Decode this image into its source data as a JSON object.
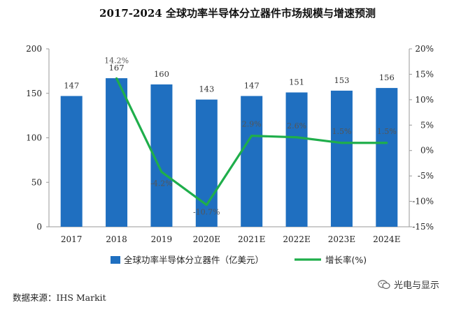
{
  "title": "2017-2024 全球功率半导体分立器件市场规模与增速预测",
  "source": "数据来源：IHS Markit",
  "watermark": "光电与显示",
  "chart_data": {
    "type": "bar+line",
    "categories": [
      "2017",
      "2018",
      "2019",
      "2020E",
      "2021E",
      "2022E",
      "2023E",
      "2024E"
    ],
    "series": [
      {
        "name": "全球功率半导体分立器件（亿美元）",
        "type": "bar",
        "axis": "left",
        "color": "#1f6fc0",
        "values": [
          147,
          167,
          160,
          143,
          147,
          151,
          153,
          156
        ],
        "labels": [
          "147",
          "167",
          "160",
          "143",
          "147",
          "151",
          "153",
          "156"
        ]
      },
      {
        "name": "增长率(%)",
        "type": "line",
        "axis": "right",
        "color": "#1fae4b",
        "values": [
          null,
          14.2,
          -4.2,
          -10.7,
          2.9,
          2.6,
          1.5,
          1.5
        ],
        "labels": [
          null,
          "14.2%",
          "-4.2%",
          "-10.7%",
          "2.9%",
          "2.6%",
          "1.5%",
          "1.5%"
        ]
      }
    ],
    "y_left": {
      "min": 0,
      "max": 200,
      "ticks": [
        0,
        50,
        100,
        150,
        200
      ]
    },
    "y_right": {
      "min": -15,
      "max": 20,
      "ticks": [
        "20%",
        "15%",
        "10%",
        "5%",
        "0%",
        "-5%",
        "-10%",
        "-15%"
      ]
    },
    "legend_position": "bottom"
  }
}
